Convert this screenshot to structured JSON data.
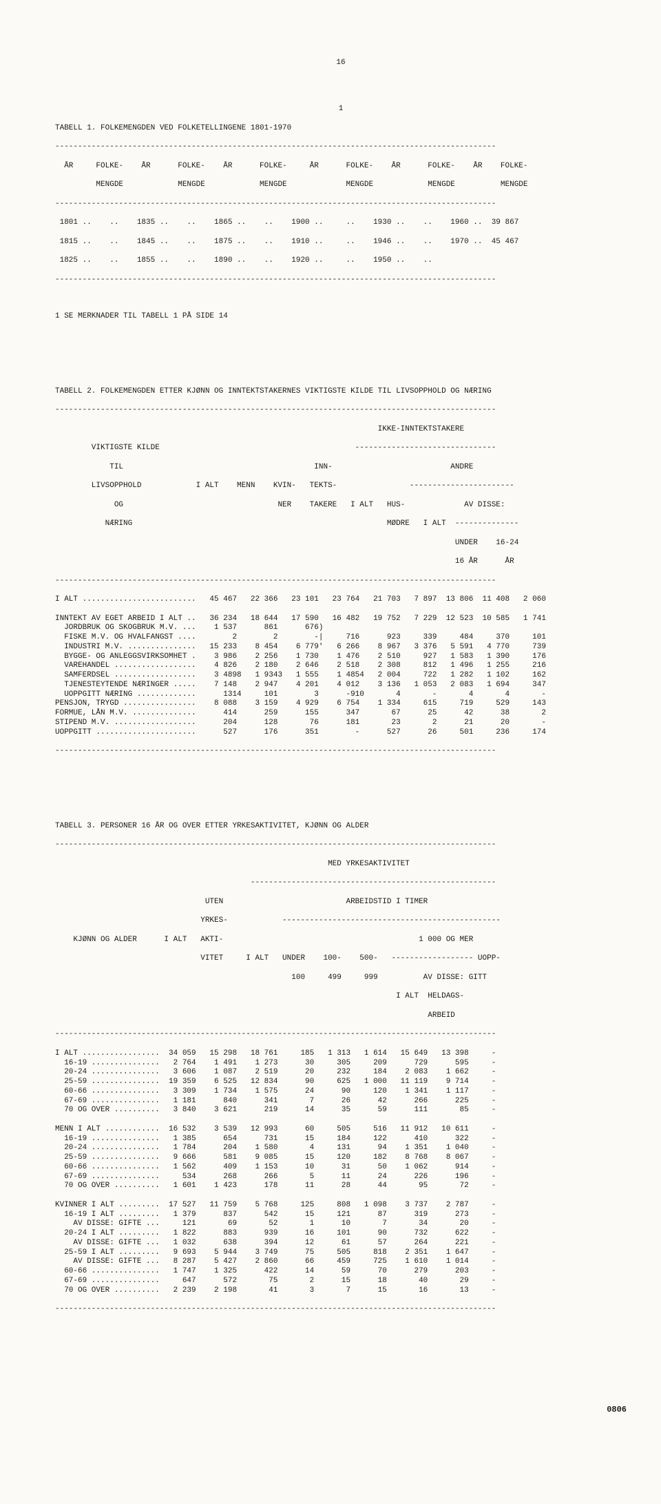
{
  "page_number": "16",
  "footnote_1": "1",
  "footer_code": "0806",
  "table1": {
    "title": "TABELL 1. FOLKEMENGDEN VED FOLKETELLINGENE 1801-1970",
    "dash_top": "-------------------------------------------------------------------------------------------------",
    "header_l1": "  ÅR     FOLKE-    ÅR      FOLKE-    ÅR      FOLKE-     ÅR      FOLKE-    ÅR      FOLKE-    ÅR    FOLKE-",
    "header_l2": "         MENGDE            MENGDE            MENGDE             MENGDE            MENGDE          MENGDE",
    "dash_mid": "-------------------------------------------------------------------------------------------------",
    "row1": " 1801 ..    ..    1835 ..    ..    1865 ..    ..    1900 ..     ..    1930 ..    ..    1960 ..  39 867",
    "row2": " 1815 ..    ..    1845 ..    ..    1875 ..    ..    1910 ..     ..    1946 ..    ..    1970 ..  45 467",
    "row3": " 1825 ..    ..    1855 ..    ..    1890 ..    ..    1920 ..     ..    1950 ..    ..",
    "dash_bot": "-------------------------------------------------------------------------------------------------",
    "footnote": "1 SE MERKNADER TIL TABELL 1 PÅ SIDE 14"
  },
  "table2": {
    "title": "TABELL 2. FOLKEMENGDEN ETTER KJØNN OG INNTEKTSTAKERNES VIKTIGSTE KILDE TIL LIVSOPPHOLD OG NÆRING",
    "dash_top": "-------------------------------------------------------------------------------------------------",
    "h1": "                                                                       IKKE-INNTEKTSTAKERE",
    "h2": "        VIKTIGSTE KILDE                                           -------------------------------",
    "h3": "            TIL                                          INN-                          ANDRE",
    "h4": "        LIVSOPPHOLD            I ALT    MENN    KVIN-   TEKTS-                -----------------------",
    "h5": "             OG                                  NER    TAKERE   I ALT   HUS-             AV DISSE:",
    "h6": "           NÆRING                                                        MØDRE   I ALT  --------------",
    "h7": "                                                                                        UNDER    16-24",
    "h8": "                                                                                        16 ÅR      ÅR",
    "dash_mid": "-------------------------------------------------------------------------------------------------",
    "rows": [
      "I ALT .........................   45 467   22 366   23 101   23 764   21 703   7 897  13 806  11 408   2 060",
      "",
      "INNTEKT AV EGET ARBEID I ALT ..   36 234   18 644   17 590   16 482   19 752   7 229  12 523  10 585   1 741",
      "  JORDBRUK OG SKOGBRUK M.V. ...    1 537      861      676)",
      "  FISKE M.V. OG HVALFANGST ....        2        2        -|     716      923     339     484     370     101",
      "  INDUSTRI M.V. ...............   15 233    8 454    6 779'   6 266    8 967   3 376   5 591   4 770     739",
      "  BYGGE- OG ANLEGGSVIRKSOMHET .    3 986    2 256    1 730    1 476    2 510     927   1 583   1 390     176",
      "  VAREHANDEL ..................    4 826    2 180    2 646    2 518    2 308     812   1 496   1 255     216",
      "  SAMFERDSEL ..................    3 4898   1 9343   1 555    1 4854   2 004     722   1 282   1 102     162",
      "  TJENESTEYTENDE NÆRINGER .....    7 148    2 947    4 201    4 012    3 136   1 053   2 083   1 694     347",
      "  UOPPGITT NÆRING .............      1314     101        3      -910       4       -       4       4       -",
      "PENSJON, TRYGD ................    8 088    3 159    4 929    6 754    1 334     615     719     529     143",
      "FORMUE, LÅN M.V. ..............      414      259      155      347       67      25      42      38       2",
      "STIPEND M.V. ..................      204      128       76      181       23       2      21      20       -",
      "UOPPGITT ......................      527      176      351        -      527      26     501     236     174"
    ],
    "dash_bot": "-------------------------------------------------------------------------------------------------"
  },
  "table3": {
    "title": "TABELL 3. PERSONER 16 ÅR OG OVER ETTER YRKESAKTIVITET, KJØNN OG ALDER",
    "dash_top": "-------------------------------------------------------------------------------------------------",
    "h1": "                                                            MED YRKESAKTIVITET",
    "h2": "                                           ------------------------------------------------------",
    "h3": "                                 UTEN                           ARBEIDSTID I TIMER",
    "h4": "                                YRKES-            ------------------------------------------------",
    "h5": "    KJØNN OG ALDER      I ALT   AKTI-                                           1 000 OG MER",
    "h6": "                                VITET     I ALT   UNDER    100-    500-   ------------------ UOPP-",
    "h7": "                                                    100     499     999          AV DISSE: GITT",
    "h8": "                                                                           I ALT  HELDAGS-",
    "h9": "                                                                                  ARBEID",
    "dash_mid": "-------------------------------------------------------------------------------------------------",
    "rows": [
      "I ALT .................  34 059   15 298   18 761     185   1 313   1 614   15 649   13 398     -",
      "  16-19 ...............   2 764    1 491    1 273      30     305     209      729      595     -",
      "  20-24 ...............   3 606    1 087    2 519      20     232     184    2 083    1 662     -",
      "  25-59 ...............  19 359    6 525   12 834      90     625   1 000   11 119    9 714     -",
      "  60-66 ...............   3 309    1 734    1 575      24      90     120    1 341    1 117     -",
      "  67-69 ...............   1 181      840      341       7      26      42      266      225     -",
      "  70 OG OVER ..........   3 840    3 621      219      14      35      59      111       85     -",
      "",
      "MENN I ALT ............  16 532    3 539   12 993      60     505     516   11 912   10 611     -",
      "  16-19 ...............   1 385      654      731      15     184     122      410      322     -",
      "  20-24 ...............   1 784      204    1 580       4     131      94    1 351    1 040     -",
      "  25-59 ...............   9 666      581    9 085      15     120     182    8 768    8 067     -",
      "  60-66 ...............   1 562      409    1 153      10      31      50    1 062      914     -",
      "  67-69 ...............     534      268      266       5      11      24      226      196     -",
      "  70 OG OVER ..........   1 601    1 423      178      11      28      44       95       72     -",
      "",
      "KVINNER I ALT .........  17 527   11 759    5 768     125     808   1 098    3 737    2 787     -",
      "  16-19 I ALT .........   1 379      837      542      15     121      87      319      273     -",
      "    AV DISSE: GIFTE ...     121       69       52       1      10       7       34       20     -",
      "  20-24 I ALT .........   1 822      883      939      16     101      90      732      622     -",
      "    AV DISSE: GIFTE ...   1 032      638      394      12      61      57      264      221     -",
      "  25-59 I ALT .........   9 693    5 944    3 749      75     505     818    2 351    1 647     -",
      "    AV DISSE: GIFTE ...   8 287    5 427    2 860      66     459     725    1 610    1 014     -",
      "  60-66 ...............   1 747    1 325      422      14      59      70      279      203     -",
      "  67-69 ...............     647      572       75       2      15      18       40       29     -",
      "  70 OG OVER ..........   2 239    2 198       41       3       7      15       16       13     -"
    ],
    "dash_bot": "-------------------------------------------------------------------------------------------------"
  }
}
